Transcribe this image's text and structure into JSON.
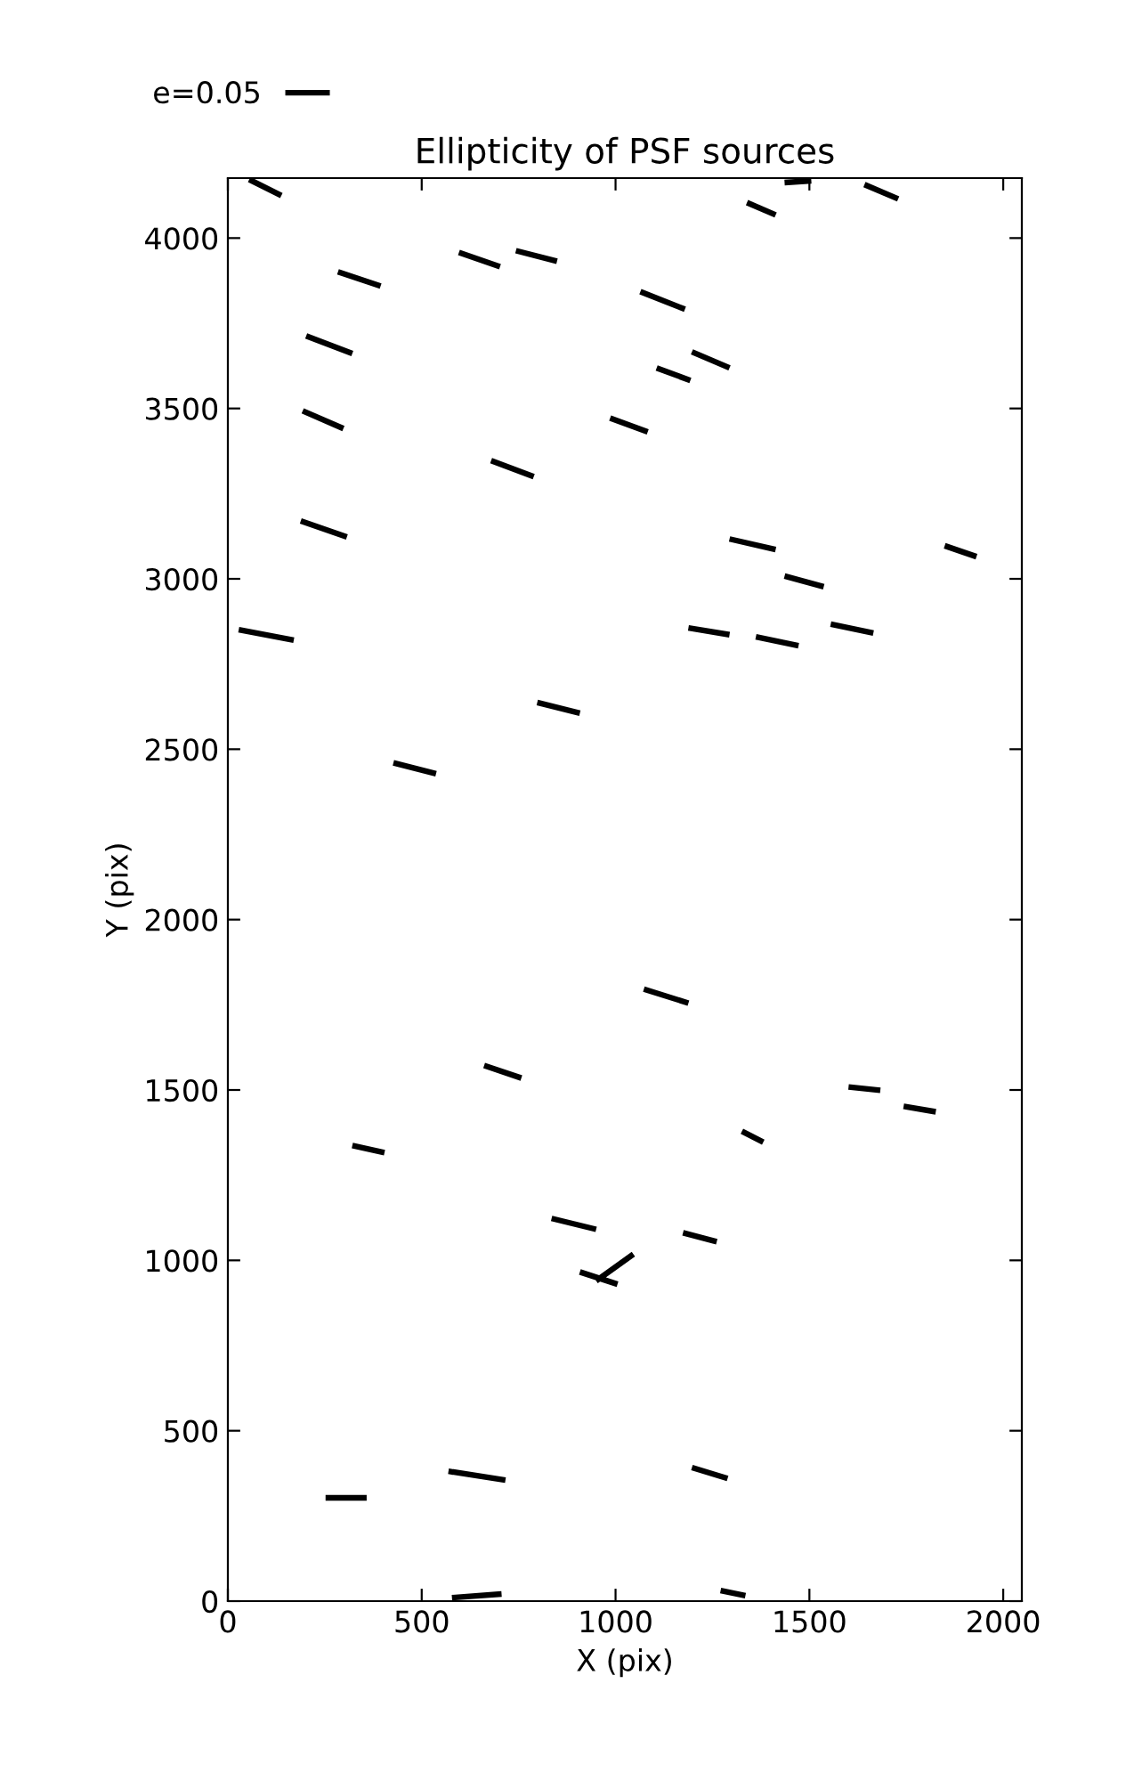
{
  "chart_data": {
    "type": "line",
    "title": "Ellipticity of PSF sources",
    "xlabel": "X (pix)",
    "ylabel": "Y (pix)",
    "xlim": [
      0,
      2048
    ],
    "ylim": [
      0,
      4176
    ],
    "xticks": [
      0,
      500,
      1000,
      1500,
      2000
    ],
    "yticks": [
      0,
      500,
      1000,
      1500,
      2000,
      2500,
      3000,
      3500,
      4000
    ],
    "grid": false,
    "legend": "top left",
    "marker": "none",
    "line_style": "solid",
    "series": [
      {
        "name": "e=0.05",
        "color": "#000000",
        "x": [
          55,
          138,
          null,
          1339,
          1413,
          null,
          1436,
          1505,
          null,
          1642,
          1729,
          null,
          284,
          394,
          null,
          596,
          702,
          null,
          743,
          849,
          null,
          1064,
          1179,
          null,
          202,
          321,
          null,
          1197,
          1294,
          null,
          1106,
          1193,
          null,
          193,
          298,
          null,
          986,
          1083,
          null,
          679,
          789,
          null,
          188,
          307,
          null,
          1294,
          1413,
          null,
          1436,
          1537,
          null,
          1849,
          1931,
          null,
          28,
          170,
          null,
          1188,
          1294,
          null,
          1362,
          1472,
          null,
          1555,
          1665,
          null,
          798,
          908,
          null,
          427,
          537,
          null,
          1073,
          1188,
          null,
          661,
          757,
          null,
          1601,
          1683,
          null,
          1743,
          1826,
          null,
          1326,
          1381,
          null,
          321,
          404,
          null,
          835,
          950,
          null,
          1174,
          1261,
          null,
          908,
          1005,
          null,
          950,
          1046,
          null,
          252,
          358,
          null,
          569,
          716,
          null,
          1197,
          1289,
          null,
          578,
          706,
          null,
          1271,
          1335
        ],
        "values": [
          4172,
          4125,
          null,
          4104,
          4068,
          null,
          4163,
          4168,
          null,
          4157,
          4115,
          null,
          3901,
          3859,
          null,
          3958,
          3916,
          null,
          3963,
          3932,
          null,
          3843,
          3791,
          null,
          3713,
          3661,
          null,
          3666,
          3619,
          null,
          3619,
          3582,
          null,
          3493,
          3441,
          null,
          3472,
          3431,
          null,
          3347,
          3300,
          null,
          3170,
          3123,
          null,
          3117,
          3086,
          null,
          3008,
          2977,
          null,
          3097,
          3065,
          null,
          2851,
          2820,
          null,
          2856,
          2836,
          null,
          2830,
          2804,
          null,
          2867,
          2841,
          null,
          2637,
          2606,
          null,
          2460,
          2428,
          null,
          1796,
          1755,
          null,
          1572,
          1535,
          null,
          1509,
          1499,
          null,
          1452,
          1436,
          null,
          1379,
          1347,
          null,
          1337,
          1316,
          null,
          1123,
          1091,
          null,
          1081,
          1055,
          null,
          966,
          930,
          null,
          940,
          1018,
          null,
          303,
          303,
          null,
          381,
          355,
          null,
          392,
          360,
          null,
          10,
          21,
          null,
          31,
          16
        ]
      }
    ]
  }
}
